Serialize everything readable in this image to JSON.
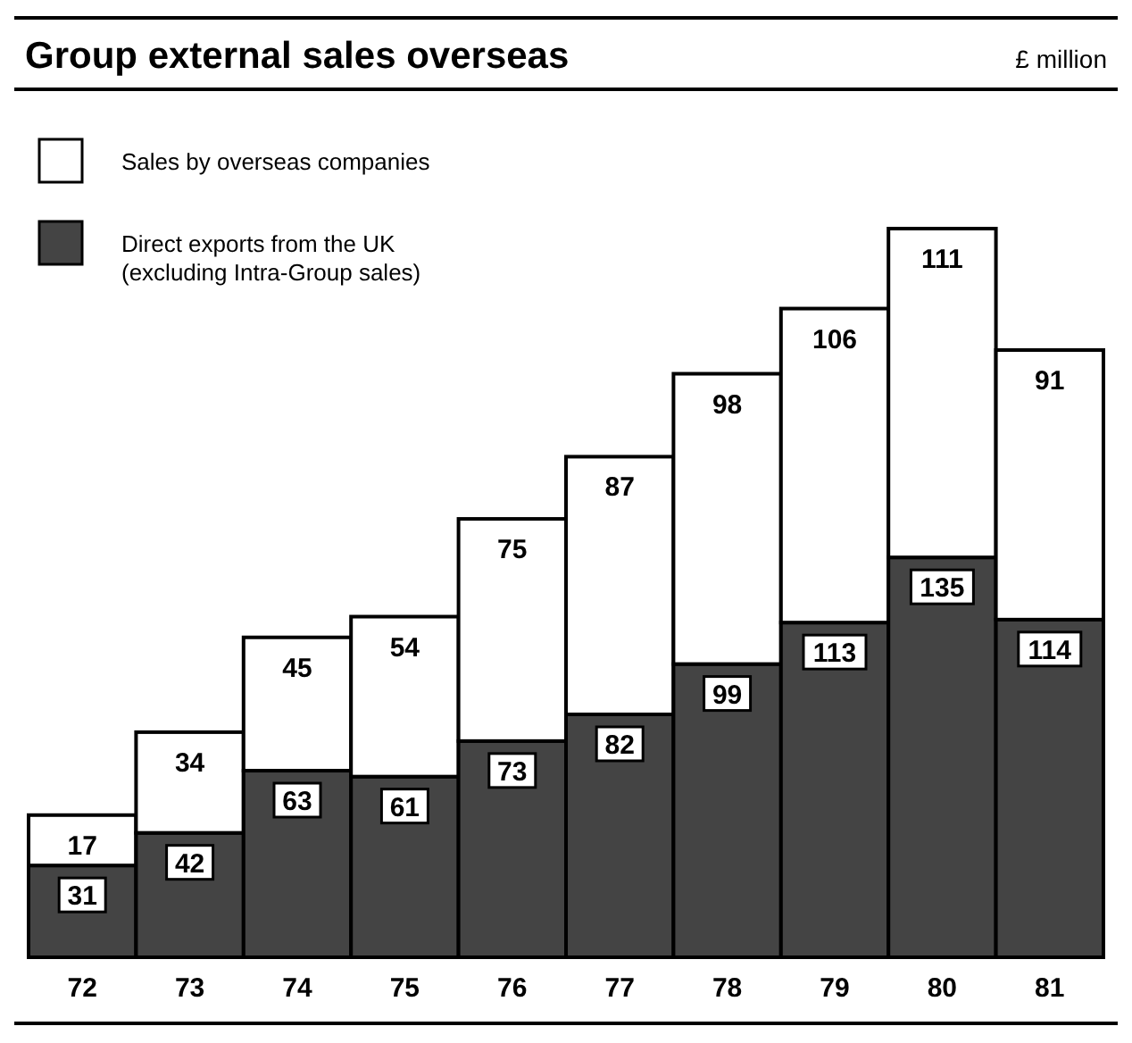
{
  "chart_data": {
    "type": "bar",
    "stacked": true,
    "title": "Group external sales overseas",
    "annotations": [
      "£ million"
    ],
    "categories": [
      "72",
      "73",
      "74",
      "75",
      "76",
      "77",
      "78",
      "79",
      "80",
      "81"
    ],
    "series": [
      {
        "name": "Direct exports from the UK\n(excluding Intra-Group sales)",
        "color": "#444444",
        "values": [
          31,
          42,
          63,
          61,
          73,
          82,
          99,
          113,
          135,
          114
        ]
      },
      {
        "name": "Sales by overseas companies",
        "color": "#ffffff",
        "values": [
          17,
          34,
          45,
          54,
          75,
          87,
          98,
          106,
          111,
          91
        ]
      }
    ],
    "data_labels": true,
    "legend": "top left",
    "grid": false
  }
}
